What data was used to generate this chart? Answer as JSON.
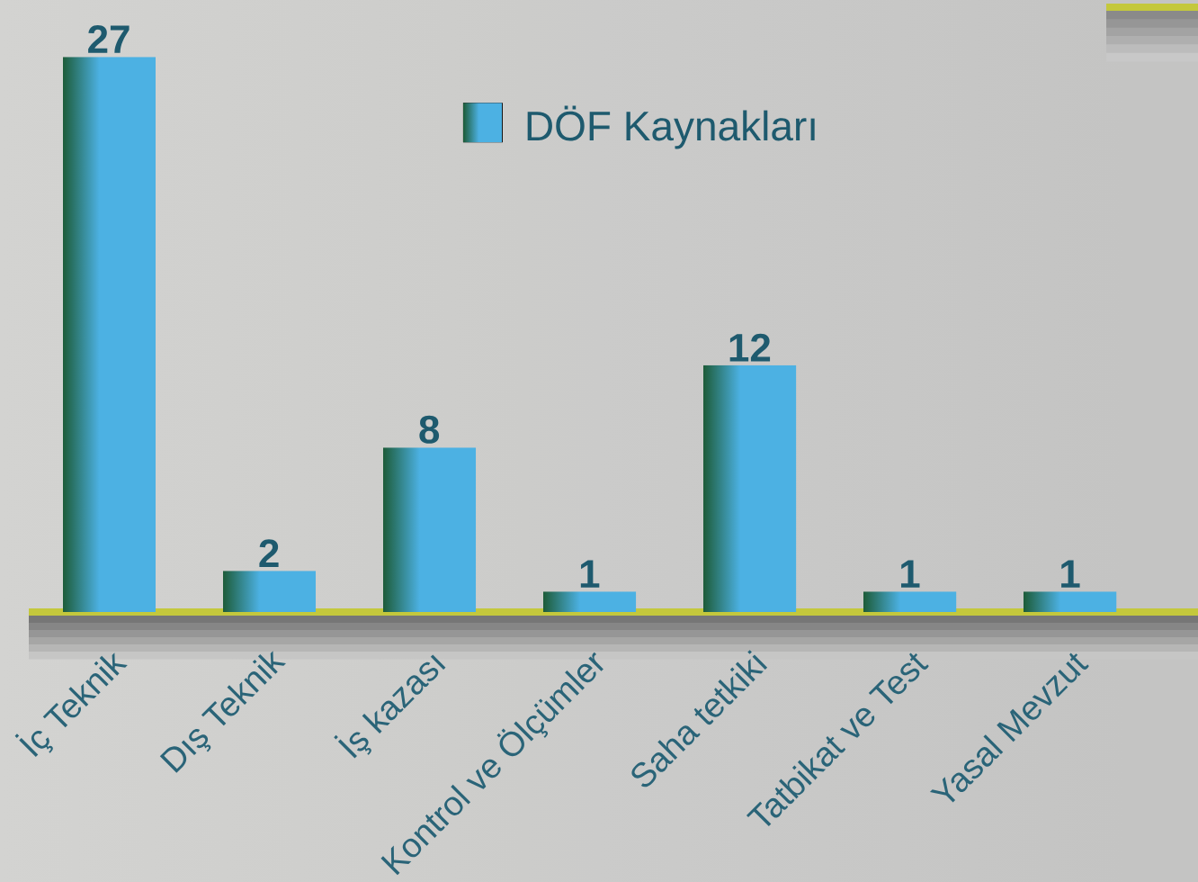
{
  "chart_data": {
    "type": "bar",
    "categories": [
      "İç Teknik",
      "Dış Teknik",
      "İş kazası",
      "Kontrol ve Ölçümler",
      "Saha tetkiki",
      "Tatbikat ve Test",
      "Yasal Mevzut"
    ],
    "series": [
      {
        "name": "DÖF Kaynakları",
        "color": "#4cb1e3",
        "values": [
          27,
          2,
          8,
          1,
          12,
          1,
          1
        ]
      }
    ],
    "data_labels": true,
    "legend": "top",
    "tick_labels": "x"
  }
}
